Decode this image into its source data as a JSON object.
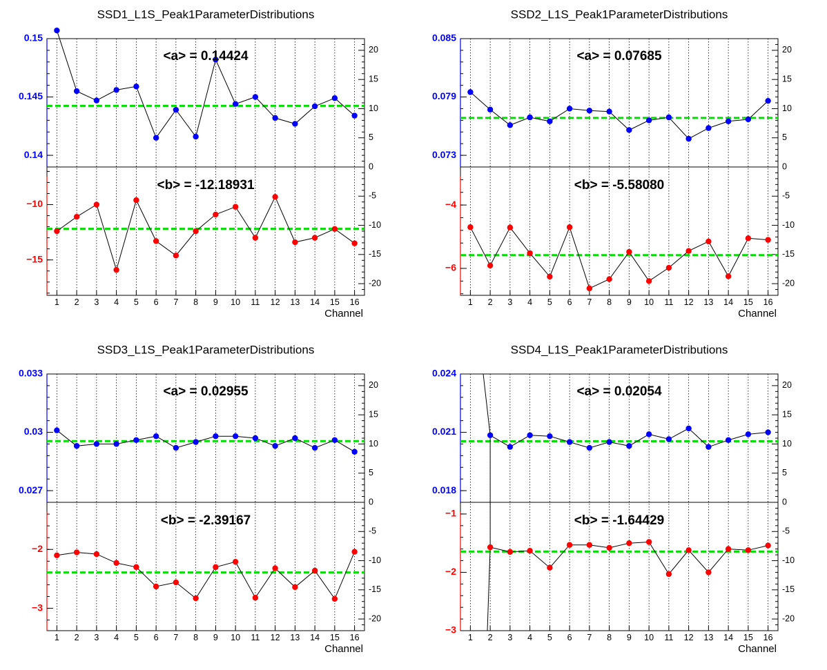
{
  "figure": {
    "x_title": "Channel",
    "colors": {
      "a": "#0000ff",
      "b": "#ff0000",
      "mean": "#00dd00",
      "line": "#000000"
    }
  },
  "chart_data": [
    {
      "type": "scatter",
      "title": "SSD1_L1S_Peak1ParameterDistributions",
      "xlabel": "Channel",
      "x": [
        1,
        2,
        3,
        4,
        5,
        6,
        7,
        8,
        9,
        10,
        11,
        12,
        13,
        14,
        15,
        16
      ],
      "right_axis": {
        "ylim": [
          -22,
          22
        ],
        "ticks": [
          -20,
          -15,
          -10,
          -5,
          0,
          5,
          10,
          15,
          20
        ]
      },
      "top": {
        "mean_label": "<a> = 0.14424",
        "mean": 0.14424,
        "ylim": [
          0.139,
          0.15
        ],
        "ticks": [
          0.14,
          0.145,
          0.15
        ],
        "tick_labels": [
          "0.14",
          "0.145",
          "0.15"
        ],
        "values": [
          0.1507,
          0.1455,
          0.1447,
          0.1456,
          0.1459,
          0.1415,
          0.1439,
          0.1416,
          0.1482,
          0.1444,
          0.145,
          0.1432,
          0.1427,
          0.1442,
          0.1449,
          0.1434
        ]
      },
      "bottom": {
        "mean_label": "<b> = -12.18931",
        "mean": -12.18931,
        "ylim": [
          -18.2,
          -6.6
        ],
        "ticks": [
          -15,
          -10
        ],
        "tick_labels": [
          "−15",
          "−10"
        ],
        "values": [
          -12.4,
          -11.1,
          -10.0,
          -15.9,
          -9.6,
          -13.3,
          -14.6,
          -12.4,
          -10.9,
          -10.2,
          -13.0,
          -9.3,
          -13.4,
          -13.0,
          -12.2,
          -13.5
        ]
      }
    },
    {
      "type": "scatter",
      "title": "SSD2_L1S_Peak1ParameterDistributions",
      "xlabel": "Channel",
      "x": [
        1,
        2,
        3,
        4,
        5,
        6,
        7,
        8,
        9,
        10,
        11,
        12,
        13,
        14,
        15,
        16
      ],
      "right_axis": {
        "ylim": [
          -22,
          22
        ],
        "ticks": [
          -20,
          -15,
          -10,
          -5,
          0,
          5,
          10,
          15,
          20
        ]
      },
      "top": {
        "mean_label": "<a> = 0.07685",
        "mean": 0.07685,
        "ylim": [
          0.0718,
          0.085
        ],
        "ticks": [
          0.073,
          0.079,
          0.085
        ],
        "tick_labels": [
          "0.073",
          "0.079",
          "0.085"
        ],
        "values": [
          0.0795,
          0.0777,
          0.0761,
          0.0769,
          0.0765,
          0.0778,
          0.0776,
          0.0775,
          0.0756,
          0.0766,
          0.0769,
          0.0747,
          0.0758,
          0.0765,
          0.0767,
          0.0786
        ]
      },
      "bottom": {
        "mean_label": "<b> = -5.58080",
        "mean": -5.5808,
        "ylim": [
          -6.85,
          -2.8
        ],
        "ticks": [
          -6,
          -4
        ],
        "tick_labels": [
          "−6",
          "−4"
        ],
        "values": [
          -4.7,
          -5.91,
          -4.71,
          -5.52,
          -6.26,
          -4.7,
          -6.63,
          -6.34,
          -5.48,
          -6.4,
          -5.98,
          -5.45,
          -5.15,
          -6.25,
          -5.05,
          -5.1
        ]
      }
    },
    {
      "type": "scatter",
      "title": "SSD3_L1S_Peak1ParameterDistributions",
      "xlabel": "Channel",
      "x": [
        1,
        2,
        3,
        4,
        5,
        6,
        7,
        8,
        9,
        10,
        11,
        12,
        13,
        14,
        15,
        16
      ],
      "right_axis": {
        "ylim": [
          -22,
          22
        ],
        "ticks": [
          -20,
          -15,
          -10,
          -5,
          0,
          5,
          10,
          15,
          20
        ]
      },
      "top": {
        "mean_label": "<a> = 0.02955",
        "mean": 0.02955,
        "ylim": [
          0.0264,
          0.033
        ],
        "ticks": [
          0.027,
          0.03,
          0.033
        ],
        "tick_labels": [
          "0.027",
          "0.03",
          "0.033"
        ],
        "values": [
          0.0301,
          0.0293,
          0.0294,
          0.0294,
          0.0296,
          0.0298,
          0.0292,
          0.0295,
          0.0298,
          0.0298,
          0.0297,
          0.0293,
          0.0297,
          0.0292,
          0.0296,
          0.029
        ]
      },
      "bottom": {
        "mean_label": "<b> = -2.39167",
        "mean": -2.39167,
        "ylim": [
          -3.38,
          -1.2
        ],
        "ticks": [
          -3,
          -2
        ],
        "tick_labels": [
          "−3",
          "−2"
        ],
        "values": [
          -2.1,
          -2.05,
          -2.08,
          -2.23,
          -2.3,
          -2.63,
          -2.56,
          -2.83,
          -2.3,
          -2.21,
          -2.82,
          -2.32,
          -2.64,
          -2.36,
          -2.84,
          -2.04
        ]
      }
    },
    {
      "type": "scatter",
      "title": "SSD4_L1S_Peak1ParameterDistributions",
      "xlabel": "Channel",
      "x": [
        1,
        2,
        3,
        4,
        5,
        6,
        7,
        8,
        9,
        10,
        11,
        12,
        13,
        14,
        15,
        16
      ],
      "right_axis": {
        "ylim": [
          -22,
          22
        ],
        "ticks": [
          -20,
          -15,
          -10,
          -5,
          0,
          5,
          10,
          15,
          20
        ]
      },
      "top": {
        "mean_label": "<a> = 0.02054",
        "mean": 0.02054,
        "ylim": [
          0.0174,
          0.024
        ],
        "ticks": [
          0.018,
          0.021,
          0.024
        ],
        "tick_labels": [
          "0.018",
          "0.021",
          "0.024"
        ],
        "values": [
          null,
          0.02085,
          0.02025,
          0.02085,
          0.0208,
          0.0205,
          0.0202,
          0.0205,
          0.0203,
          0.0209,
          0.02065,
          0.0212,
          0.02025,
          0.0206,
          0.0209,
          0.021
        ]
      },
      "bottom": {
        "mean_label": "<b> = -1.64429",
        "mean": -1.64429,
        "ylim": [
          -3.0,
          -0.8
        ],
        "ticks": [
          -3,
          -2,
          -1
        ],
        "tick_labels": [
          "−3",
          "−2",
          "−1"
        ],
        "values": [
          null,
          -1.57,
          -1.65,
          -1.63,
          -1.92,
          -1.53,
          -1.53,
          -1.58,
          -1.5,
          -1.48,
          -2.03,
          -1.62,
          -2.0,
          -1.6,
          -1.62,
          -1.54
        ]
      }
    }
  ]
}
